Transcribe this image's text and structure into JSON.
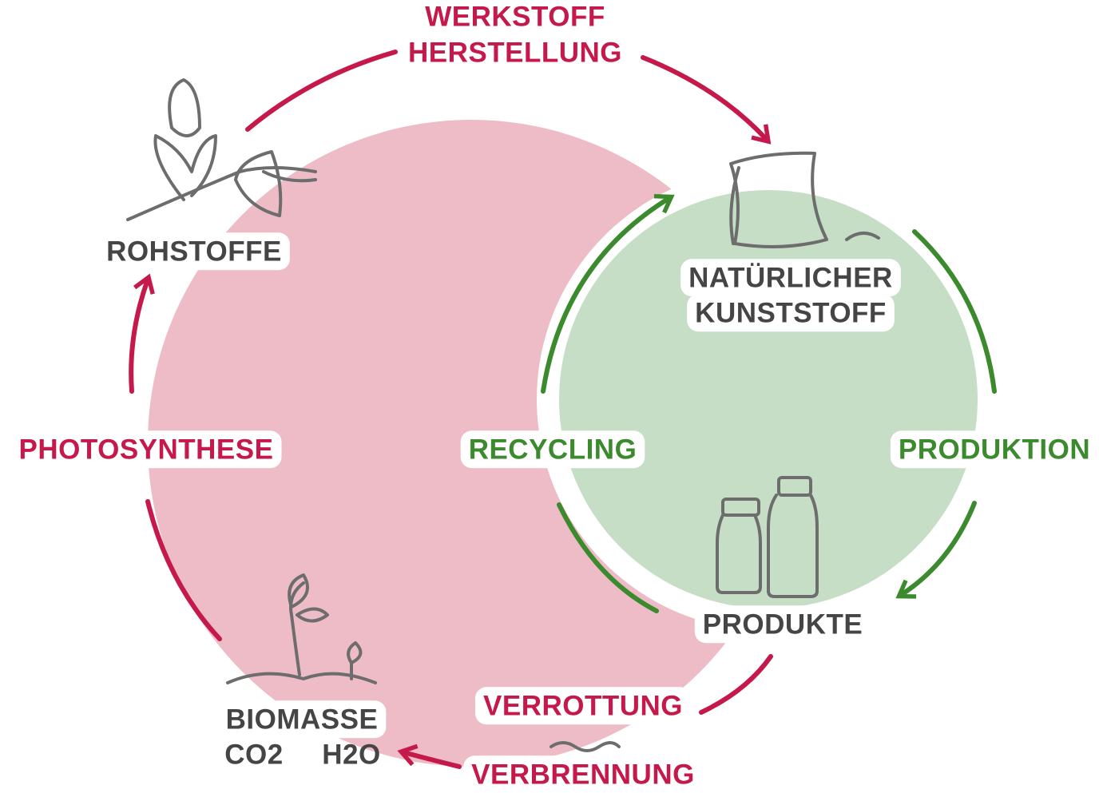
{
  "nodes": [
    {
      "label": [
        "ROHSTOFFE"
      ]
    },
    {
      "label": [
        "NATÜRLICHER",
        "KUNSTSTOFF"
      ]
    },
    {
      "label": [
        "PRODUKTE"
      ]
    },
    {
      "label": [
        "BIOMASSE",
        "CO2",
        "H2O"
      ]
    }
  ],
  "processes": [
    {
      "label": [
        "WERKSTOFF",
        "HERSTELLUNG"
      ]
    },
    {
      "label": [
        "PRODUKTION"
      ]
    },
    {
      "label": [
        "RECYCLING"
      ]
    },
    {
      "label": [
        "VERROTTUNG"
      ]
    },
    {
      "label": [
        "VERBRENNUNG"
      ]
    },
    {
      "label": [
        "PHOTOSYNTHESE"
      ]
    }
  ]
}
